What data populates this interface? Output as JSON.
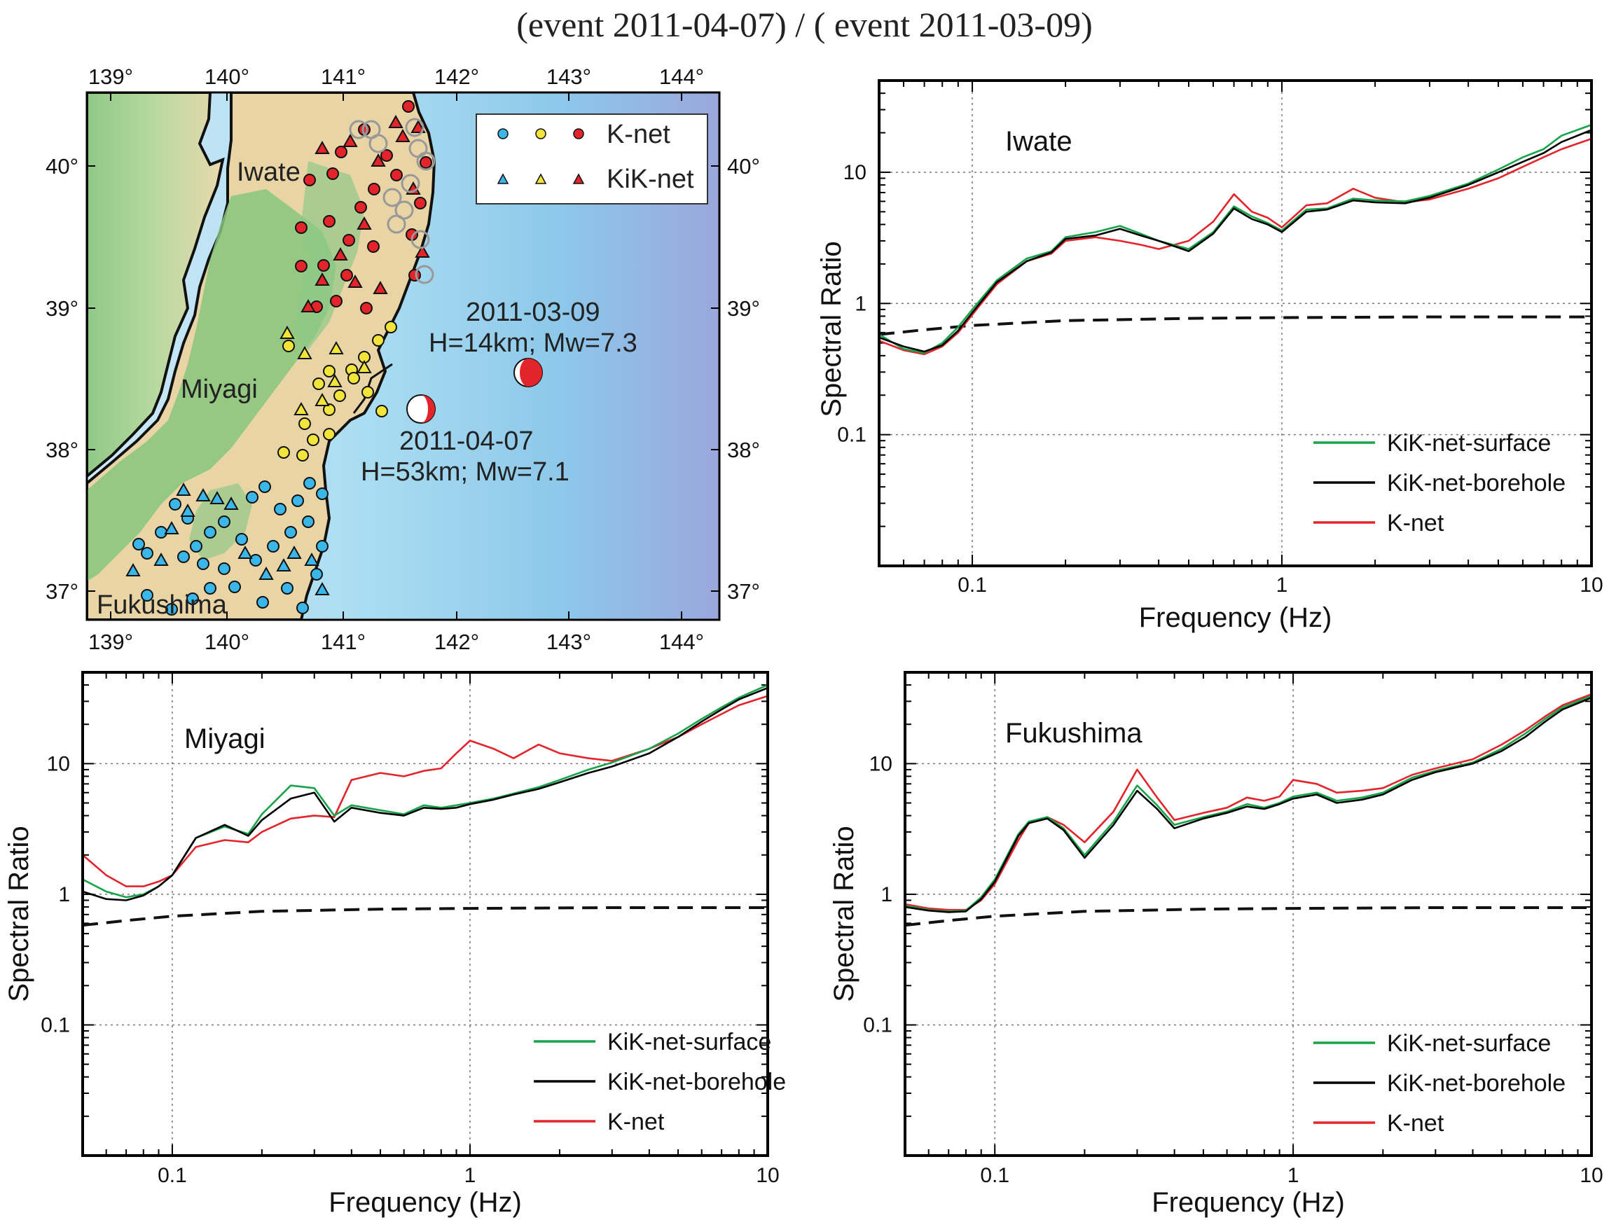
{
  "title": "(event 2011-04-07) / ( event 2011-03-09)",
  "colors": {
    "surface": "#17a34a",
    "borehole": "#000000",
    "knet": "#e3242b",
    "reference": "#111111"
  },
  "map": {
    "lon_labels": [
      "139°",
      "140°",
      "141°",
      "142°",
      "143°",
      "144°"
    ],
    "lat_labels": [
      "40°",
      "39°",
      "38°",
      "37°"
    ],
    "regions": [
      "Iwate",
      "Miyagi",
      "Fukushima"
    ],
    "legend": {
      "knet": "K-net",
      "kiknet": "KiK-net",
      "symbol_colors": [
        "#3bb6e8",
        "#f2e43a",
        "#e3242b"
      ]
    },
    "events": [
      {
        "label": "2011-03-09",
        "params": "H=14km; Mw=7.3"
      },
      {
        "label": "2011-04-07",
        "params": "H=53km; Mw=7.1"
      }
    ]
  },
  "chart_data": [
    {
      "type": "line",
      "region": "Iwate",
      "xscale": "log",
      "yscale": "log",
      "xlim": [
        0.05,
        10
      ],
      "ylim": [
        0.01,
        50
      ],
      "xticks": [
        "0.1",
        "1",
        "10"
      ],
      "yticks": [
        "0.1",
        "1",
        "10"
      ],
      "xlabel": "Frequency (Hz)",
      "ylabel": "Spectral Ratio",
      "legend": [
        "KiK-net-surface",
        "KiK-net-borehole",
        "K-net"
      ],
      "legend_position": "bottom-right",
      "reference": {
        "x": [
          0.05,
          0.07,
          0.1,
          0.2,
          0.5,
          1,
          3,
          10
        ],
        "y": [
          0.58,
          0.63,
          0.68,
          0.74,
          0.77,
          0.78,
          0.79,
          0.79
        ]
      },
      "series": [
        {
          "name": "KiK-net-surface",
          "x": [
            0.05,
            0.06,
            0.07,
            0.08,
            0.09,
            0.1,
            0.12,
            0.15,
            0.18,
            0.2,
            0.25,
            0.3,
            0.35,
            0.4,
            0.5,
            0.6,
            0.7,
            0.8,
            0.9,
            1.0,
            1.2,
            1.4,
            1.7,
            2,
            2.5,
            3,
            4,
            5,
            6,
            7,
            8,
            10
          ],
          "y": [
            0.58,
            0.45,
            0.42,
            0.5,
            0.66,
            0.9,
            1.5,
            2.2,
            2.5,
            3.2,
            3.5,
            3.9,
            3.4,
            3.0,
            2.6,
            3.5,
            5.5,
            4.6,
            4.1,
            3.6,
            5.2,
            5.3,
            6.3,
            6.1,
            6.0,
            6.6,
            8.2,
            10.5,
            13,
            15,
            19,
            23
          ]
        },
        {
          "name": "KiK-net-borehole",
          "x": [
            0.05,
            0.06,
            0.07,
            0.08,
            0.09,
            0.1,
            0.12,
            0.15,
            0.18,
            0.2,
            0.25,
            0.3,
            0.35,
            0.4,
            0.5,
            0.6,
            0.7,
            0.8,
            0.9,
            1.0,
            1.2,
            1.4,
            1.7,
            2,
            2.5,
            3,
            4,
            5,
            6,
            7,
            8,
            10
          ],
          "y": [
            0.55,
            0.47,
            0.43,
            0.48,
            0.62,
            0.85,
            1.45,
            2.1,
            2.45,
            3.1,
            3.3,
            3.7,
            3.3,
            3.0,
            2.5,
            3.4,
            5.3,
            4.4,
            4.0,
            3.5,
            5.0,
            5.2,
            6.1,
            5.9,
            5.8,
            6.4,
            8.0,
            10,
            12,
            14,
            17,
            21
          ]
        },
        {
          "name": "K-net",
          "x": [
            0.05,
            0.06,
            0.07,
            0.08,
            0.09,
            0.1,
            0.12,
            0.15,
            0.18,
            0.2,
            0.25,
            0.3,
            0.35,
            0.4,
            0.5,
            0.6,
            0.7,
            0.8,
            0.9,
            1.0,
            1.2,
            1.4,
            1.7,
            2,
            2.5,
            3,
            4,
            5,
            6,
            7,
            8,
            10
          ],
          "y": [
            0.52,
            0.44,
            0.41,
            0.47,
            0.6,
            0.82,
            1.4,
            2.1,
            2.4,
            3.0,
            3.2,
            3.0,
            2.8,
            2.6,
            3.0,
            4.2,
            6.8,
            5.0,
            4.5,
            3.8,
            5.6,
            5.8,
            7.5,
            6.4,
            5.9,
            6.2,
            7.5,
            9,
            11,
            13,
            15,
            18
          ]
        }
      ]
    },
    {
      "type": "line",
      "region": "Miyagi",
      "xscale": "log",
      "yscale": "log",
      "xlim": [
        0.05,
        10
      ],
      "ylim": [
        0.01,
        50
      ],
      "xticks": [
        "0.1",
        "1",
        "10"
      ],
      "yticks": [
        "0.1",
        "1",
        "10"
      ],
      "xlabel": "Frequency (Hz)",
      "ylabel": "Spectral Ratio",
      "legend": [
        "KiK-net-surface",
        "KiK-net-borehole",
        "K-net"
      ],
      "legend_position": "bottom-right",
      "reference": {
        "x": [
          0.05,
          0.07,
          0.1,
          0.2,
          0.5,
          1,
          3,
          10
        ],
        "y": [
          0.58,
          0.63,
          0.68,
          0.74,
          0.77,
          0.78,
          0.79,
          0.79
        ]
      },
      "series": [
        {
          "name": "KiK-net-surface",
          "x": [
            0.05,
            0.06,
            0.07,
            0.08,
            0.09,
            0.1,
            0.12,
            0.15,
            0.18,
            0.2,
            0.25,
            0.3,
            0.35,
            0.4,
            0.5,
            0.6,
            0.7,
            0.8,
            0.9,
            1.0,
            1.2,
            1.4,
            1.7,
            2,
            2.5,
            3,
            4,
            5,
            6,
            7,
            8,
            10
          ],
          "y": [
            1.3,
            1.05,
            0.95,
            1.0,
            1.15,
            1.4,
            2.7,
            3.3,
            2.9,
            4.1,
            6.8,
            6.5,
            4.0,
            4.8,
            4.4,
            4.1,
            4.8,
            4.6,
            4.8,
            5.0,
            5.4,
            5.9,
            6.6,
            7.5,
            9.0,
            10.2,
            13,
            17,
            22,
            27,
            32,
            40
          ]
        },
        {
          "name": "KiK-net-borehole",
          "x": [
            0.05,
            0.06,
            0.07,
            0.08,
            0.09,
            0.1,
            0.12,
            0.15,
            0.18,
            0.2,
            0.25,
            0.3,
            0.35,
            0.4,
            0.5,
            0.6,
            0.7,
            0.8,
            0.9,
            1.0,
            1.2,
            1.4,
            1.7,
            2,
            2.5,
            3,
            4,
            5,
            6,
            7,
            8,
            10
          ],
          "y": [
            1.05,
            0.92,
            0.9,
            0.98,
            1.15,
            1.4,
            2.7,
            3.4,
            2.8,
            3.7,
            5.4,
            6.0,
            3.6,
            4.6,
            4.2,
            4.0,
            4.6,
            4.5,
            4.6,
            4.9,
            5.3,
            5.8,
            6.4,
            7.2,
            8.5,
            9.5,
            12,
            16,
            21,
            26,
            31,
            38
          ]
        },
        {
          "name": "K-net",
          "x": [
            0.05,
            0.06,
            0.07,
            0.08,
            0.09,
            0.1,
            0.12,
            0.15,
            0.18,
            0.2,
            0.25,
            0.3,
            0.35,
            0.4,
            0.5,
            0.6,
            0.7,
            0.8,
            0.9,
            1.0,
            1.2,
            1.4,
            1.7,
            2,
            2.5,
            3,
            4,
            5,
            6,
            7,
            8,
            10
          ],
          "y": [
            2.0,
            1.4,
            1.15,
            1.15,
            1.25,
            1.4,
            2.3,
            2.6,
            2.5,
            3.0,
            3.8,
            4.0,
            3.9,
            7.5,
            8.5,
            8.0,
            8.8,
            9.2,
            12,
            15,
            13,
            11,
            14,
            12,
            11,
            10.5,
            13,
            16,
            20,
            24,
            28,
            33
          ]
        }
      ]
    },
    {
      "type": "line",
      "region": "Fukushima",
      "xscale": "log",
      "yscale": "log",
      "xlim": [
        0.05,
        10
      ],
      "ylim": [
        0.01,
        50
      ],
      "xticks": [
        "0.1",
        "1",
        "10"
      ],
      "yticks": [
        "0.1",
        "1",
        "10"
      ],
      "xlabel": "Frequency (Hz)",
      "ylabel": "Spectral Ratio",
      "legend": [
        "KiK-net-surface",
        "KiK-net-borehole",
        "K-net"
      ],
      "legend_position": "bottom-right",
      "reference": {
        "x": [
          0.05,
          0.07,
          0.1,
          0.2,
          0.5,
          1,
          3,
          10
        ],
        "y": [
          0.58,
          0.63,
          0.68,
          0.74,
          0.77,
          0.78,
          0.79,
          0.79
        ]
      },
      "series": [
        {
          "name": "KiK-net-surface",
          "x": [
            0.05,
            0.06,
            0.07,
            0.08,
            0.09,
            0.1,
            0.12,
            0.13,
            0.15,
            0.17,
            0.2,
            0.25,
            0.3,
            0.35,
            0.4,
            0.5,
            0.6,
            0.7,
            0.8,
            0.9,
            1.0,
            1.2,
            1.4,
            1.7,
            2,
            2.5,
            3,
            4,
            5,
            6,
            7,
            8,
            10
          ],
          "y": [
            0.82,
            0.76,
            0.74,
            0.75,
            0.95,
            1.3,
            2.9,
            3.6,
            3.9,
            3.2,
            2.0,
            3.6,
            6.8,
            4.8,
            3.4,
            3.9,
            4.3,
            4.9,
            4.6,
            5.0,
            5.6,
            6.0,
            5.2,
            5.5,
            6.0,
            7.8,
            8.8,
            10.2,
            13,
            17,
            22,
            27,
            33
          ]
        },
        {
          "name": "KiK-net-borehole",
          "x": [
            0.05,
            0.06,
            0.07,
            0.08,
            0.09,
            0.1,
            0.12,
            0.13,
            0.15,
            0.17,
            0.2,
            0.25,
            0.3,
            0.35,
            0.4,
            0.5,
            0.6,
            0.7,
            0.8,
            0.9,
            1.0,
            1.2,
            1.4,
            1.7,
            2,
            2.5,
            3,
            4,
            5,
            6,
            7,
            8,
            10
          ],
          "y": [
            0.8,
            0.75,
            0.73,
            0.74,
            0.92,
            1.25,
            2.8,
            3.5,
            3.8,
            3.1,
            1.9,
            3.4,
            6.2,
            4.5,
            3.2,
            3.8,
            4.2,
            4.7,
            4.5,
            4.9,
            5.4,
            5.8,
            5.0,
            5.3,
            5.8,
            7.5,
            8.6,
            10,
            12.5,
            16,
            21,
            26,
            32
          ]
        },
        {
          "name": "K-net",
          "x": [
            0.05,
            0.06,
            0.07,
            0.08,
            0.09,
            0.1,
            0.12,
            0.13,
            0.15,
            0.17,
            0.2,
            0.25,
            0.3,
            0.35,
            0.4,
            0.5,
            0.6,
            0.7,
            0.8,
            0.9,
            1.0,
            1.2,
            1.4,
            1.7,
            2,
            2.5,
            3,
            4,
            5,
            6,
            7,
            8,
            10
          ],
          "y": [
            0.84,
            0.78,
            0.76,
            0.76,
            0.9,
            1.2,
            2.6,
            3.5,
            3.9,
            3.4,
            2.5,
            4.3,
            9.0,
            5.5,
            3.7,
            4.2,
            4.6,
            5.5,
            5.2,
            5.6,
            7.5,
            7.0,
            6.0,
            6.2,
            6.5,
            8.2,
            9.2,
            10.8,
            14,
            18,
            23,
            28,
            34
          ]
        }
      ]
    }
  ]
}
